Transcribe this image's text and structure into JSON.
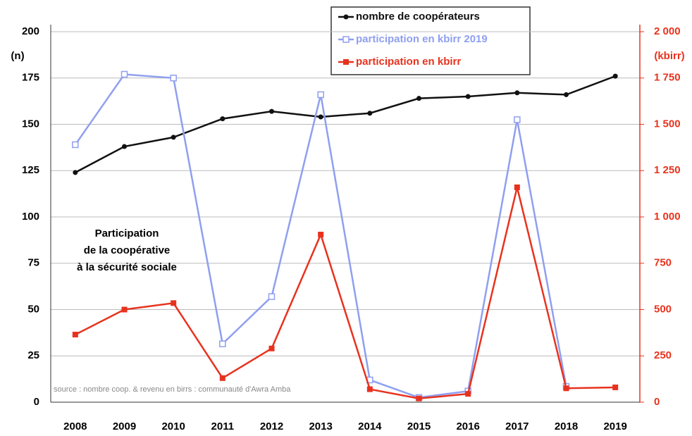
{
  "chart_data": {
    "type": "line",
    "categories": [
      "2008",
      "2009",
      "2010",
      "2011",
      "2012",
      "2013",
      "2014",
      "2015",
      "2016",
      "2017",
      "2018",
      "2019"
    ],
    "series": [
      {
        "name": "nombre de coopérateurs",
        "color": "#111111",
        "values": [
          124,
          138,
          143,
          153,
          157,
          154,
          156,
          164,
          165,
          167,
          166,
          176
        ]
      },
      {
        "name": "participation en kbirr 2019",
        "color": "#8f9ff0",
        "axis": "y2",
        "values": [
          1390,
          1770,
          1750,
          315,
          570,
          1660,
          120,
          25,
          60,
          1525,
          85,
          null
        ]
      },
      {
        "name": "participation en kbirr",
        "color": "#e8321e",
        "axis": "y2",
        "values": [
          365,
          500,
          535,
          130,
          290,
          905,
          70,
          20,
          45,
          1160,
          75,
          80
        ]
      }
    ],
    "ylabel": "(n)",
    "y2label": "(kbirr)",
    "ylim": [
      0,
      200
    ],
    "yticks": [
      0,
      25,
      50,
      75,
      100,
      125,
      150,
      175,
      200
    ],
    "y2lim": [
      0,
      2000
    ],
    "y2ticks": [
      0,
      250,
      500,
      750,
      {
        "value": 1000,
        "label": "1 000"
      },
      {
        "value": 1250,
        "label": "1 250"
      },
      {
        "value": 1500,
        "label": "1 500"
      },
      {
        "value": 1750,
        "label": "1 750"
      },
      {
        "value": 2000,
        "label": "2 000"
      }
    ],
    "grid": true,
    "annotation": [
      "Participation",
      "de la coopérative",
      "à la sécurité sociale"
    ],
    "source": "source : nombre coop. & revenu en birrs : communauté d'Awra Amba"
  }
}
